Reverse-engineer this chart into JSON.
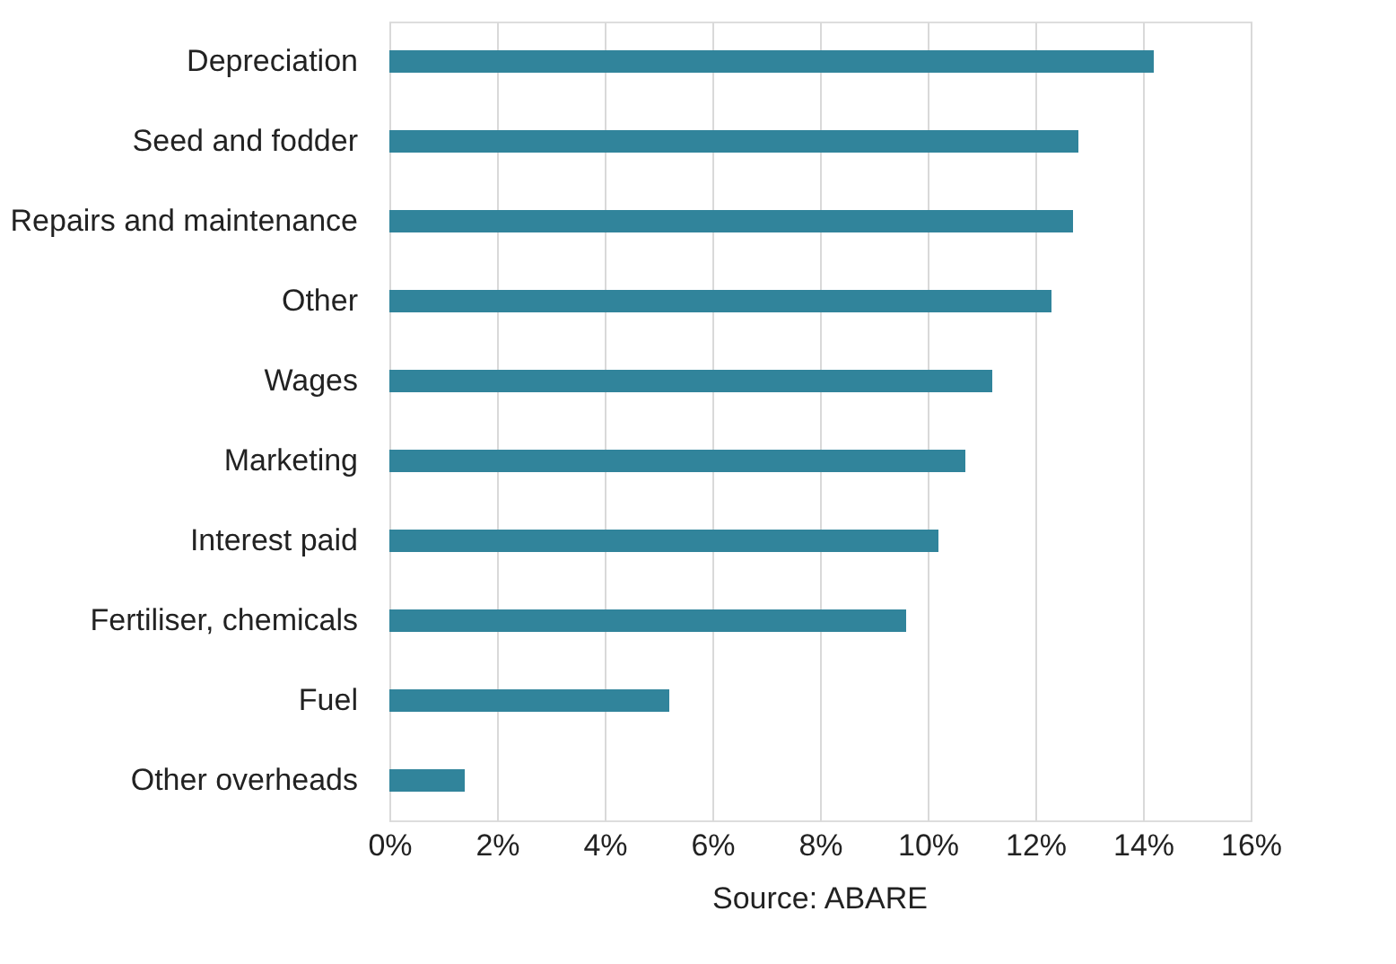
{
  "chart_data": {
    "type": "bar",
    "orientation": "horizontal",
    "categories": [
      "Depreciation",
      "Seed and fodder",
      "Repairs and maintenance",
      "Other",
      "Wages",
      "Marketing",
      "Interest paid",
      "Fertiliser, chemicals",
      "Fuel",
      "Other overheads"
    ],
    "values": [
      14.2,
      12.8,
      12.7,
      12.3,
      11.2,
      10.7,
      10.2,
      9.6,
      5.2,
      1.4
    ],
    "color": "#31849b",
    "xlim": [
      0,
      16
    ],
    "xticks": [
      {
        "value": 0,
        "label": "0%"
      },
      {
        "value": 2,
        "label": "2%"
      },
      {
        "value": 4,
        "label": "4%"
      },
      {
        "value": 6,
        "label": "6%"
      },
      {
        "value": 8,
        "label": "8%"
      },
      {
        "value": 10,
        "label": "10%"
      },
      {
        "value": 12,
        "label": "12%"
      },
      {
        "value": 14,
        "label": "14%"
      },
      {
        "value": 16,
        "label": "16%"
      }
    ],
    "grid": "x",
    "annotations": [
      "Source: ABARE"
    ]
  }
}
